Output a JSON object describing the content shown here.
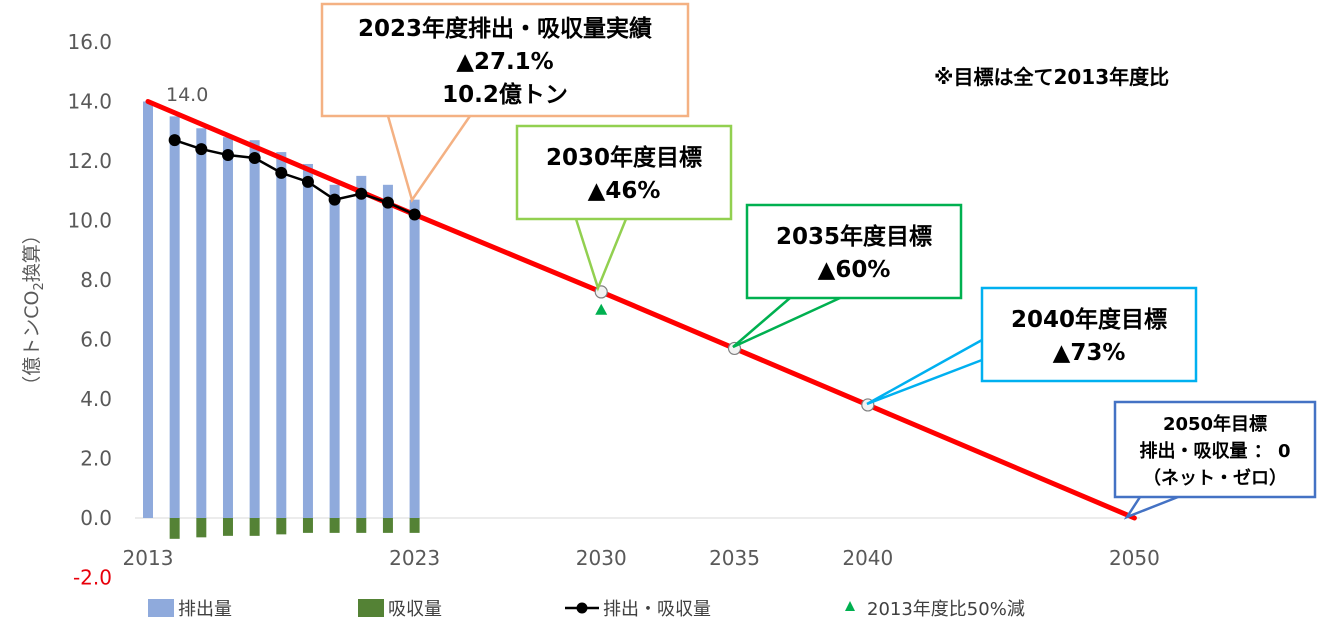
{
  "chart_data": {
    "type": "bar",
    "ylabel": "（億トンCO",
    "ylabel_sub": "2",
    "ylabel_suffix": "換算）",
    "ylim": [
      -2.0,
      16.0
    ],
    "y_ticks": [
      "16.0",
      "14.0",
      "12.0",
      "10.0",
      "8.0",
      "6.0",
      "4.0",
      "2.0",
      "0.0",
      "-2.0"
    ],
    "x_ticks": [
      {
        "year": 2013,
        "label": "2013"
      },
      {
        "year": 2023,
        "label": "2023"
      },
      {
        "year": 2030,
        "label": "2030"
      },
      {
        "year": 2035,
        "label": "2035"
      },
      {
        "year": 2040,
        "label": "2040"
      },
      {
        "year": 2050,
        "label": "2050"
      }
    ],
    "start_label": "14.0",
    "note": "※目標は全て2013年度比",
    "series": [
      {
        "name": "排出量",
        "kind": "bar",
        "color": "#8faadc",
        "years": [
          2013,
          2014,
          2015,
          2016,
          2017,
          2018,
          2019,
          2020,
          2021,
          2022,
          2023
        ],
        "values": [
          14.0,
          13.5,
          13.1,
          12.8,
          12.7,
          12.3,
          11.9,
          11.2,
          11.5,
          11.2,
          10.7
        ]
      },
      {
        "name": "吸収量",
        "kind": "bar",
        "color": "#548235",
        "years": [
          2014,
          2015,
          2016,
          2017,
          2018,
          2019,
          2020,
          2021,
          2022,
          2023
        ],
        "values": [
          -0.7,
          -0.65,
          -0.6,
          -0.6,
          -0.55,
          -0.5,
          -0.5,
          -0.5,
          -0.5,
          -0.5
        ]
      },
      {
        "name": "排出・吸収量",
        "kind": "line",
        "color": "#000000",
        "years": [
          2014,
          2015,
          2016,
          2017,
          2018,
          2019,
          2020,
          2021,
          2022,
          2023
        ],
        "values": [
          12.7,
          12.4,
          12.2,
          12.1,
          11.6,
          11.3,
          10.7,
          10.9,
          10.6,
          10.2
        ]
      },
      {
        "name": "2013年度比50%減",
        "kind": "marker",
        "color": "#00b050",
        "years": [
          2030
        ],
        "values": [
          7.0
        ]
      }
    ],
    "target_path": {
      "color": "#ff0000",
      "points": [
        {
          "year": 2013,
          "value": 14.0
        },
        {
          "year": 2023,
          "value": 10.2
        },
        {
          "year": 2030,
          "value": 7.6
        },
        {
          "year": 2035,
          "value": 5.7
        },
        {
          "year": 2040,
          "value": 3.8
        },
        {
          "year": 2050,
          "value": 0.0
        }
      ]
    },
    "callouts": [
      {
        "id": "callout-2023",
        "border": "#f4b183",
        "lines": [
          "2023年度排出・吸収量実績",
          "▲27.1%",
          "10.2億トン"
        ]
      },
      {
        "id": "callout-2030",
        "border": "#92d050",
        "lines": [
          "2030年度目標",
          "▲46%"
        ]
      },
      {
        "id": "callout-2035",
        "border": "#00b050",
        "lines": [
          "2035年度目標",
          "▲60%"
        ]
      },
      {
        "id": "callout-2040",
        "border": "#00b0f0",
        "lines": [
          "2040年度目標",
          "▲73%"
        ]
      },
      {
        "id": "callout-2050",
        "border": "#4472c4",
        "lines": [
          "2050年目標",
          "排出・吸収量 ： 0",
          "（ネット・ゼロ）"
        ]
      }
    ]
  }
}
